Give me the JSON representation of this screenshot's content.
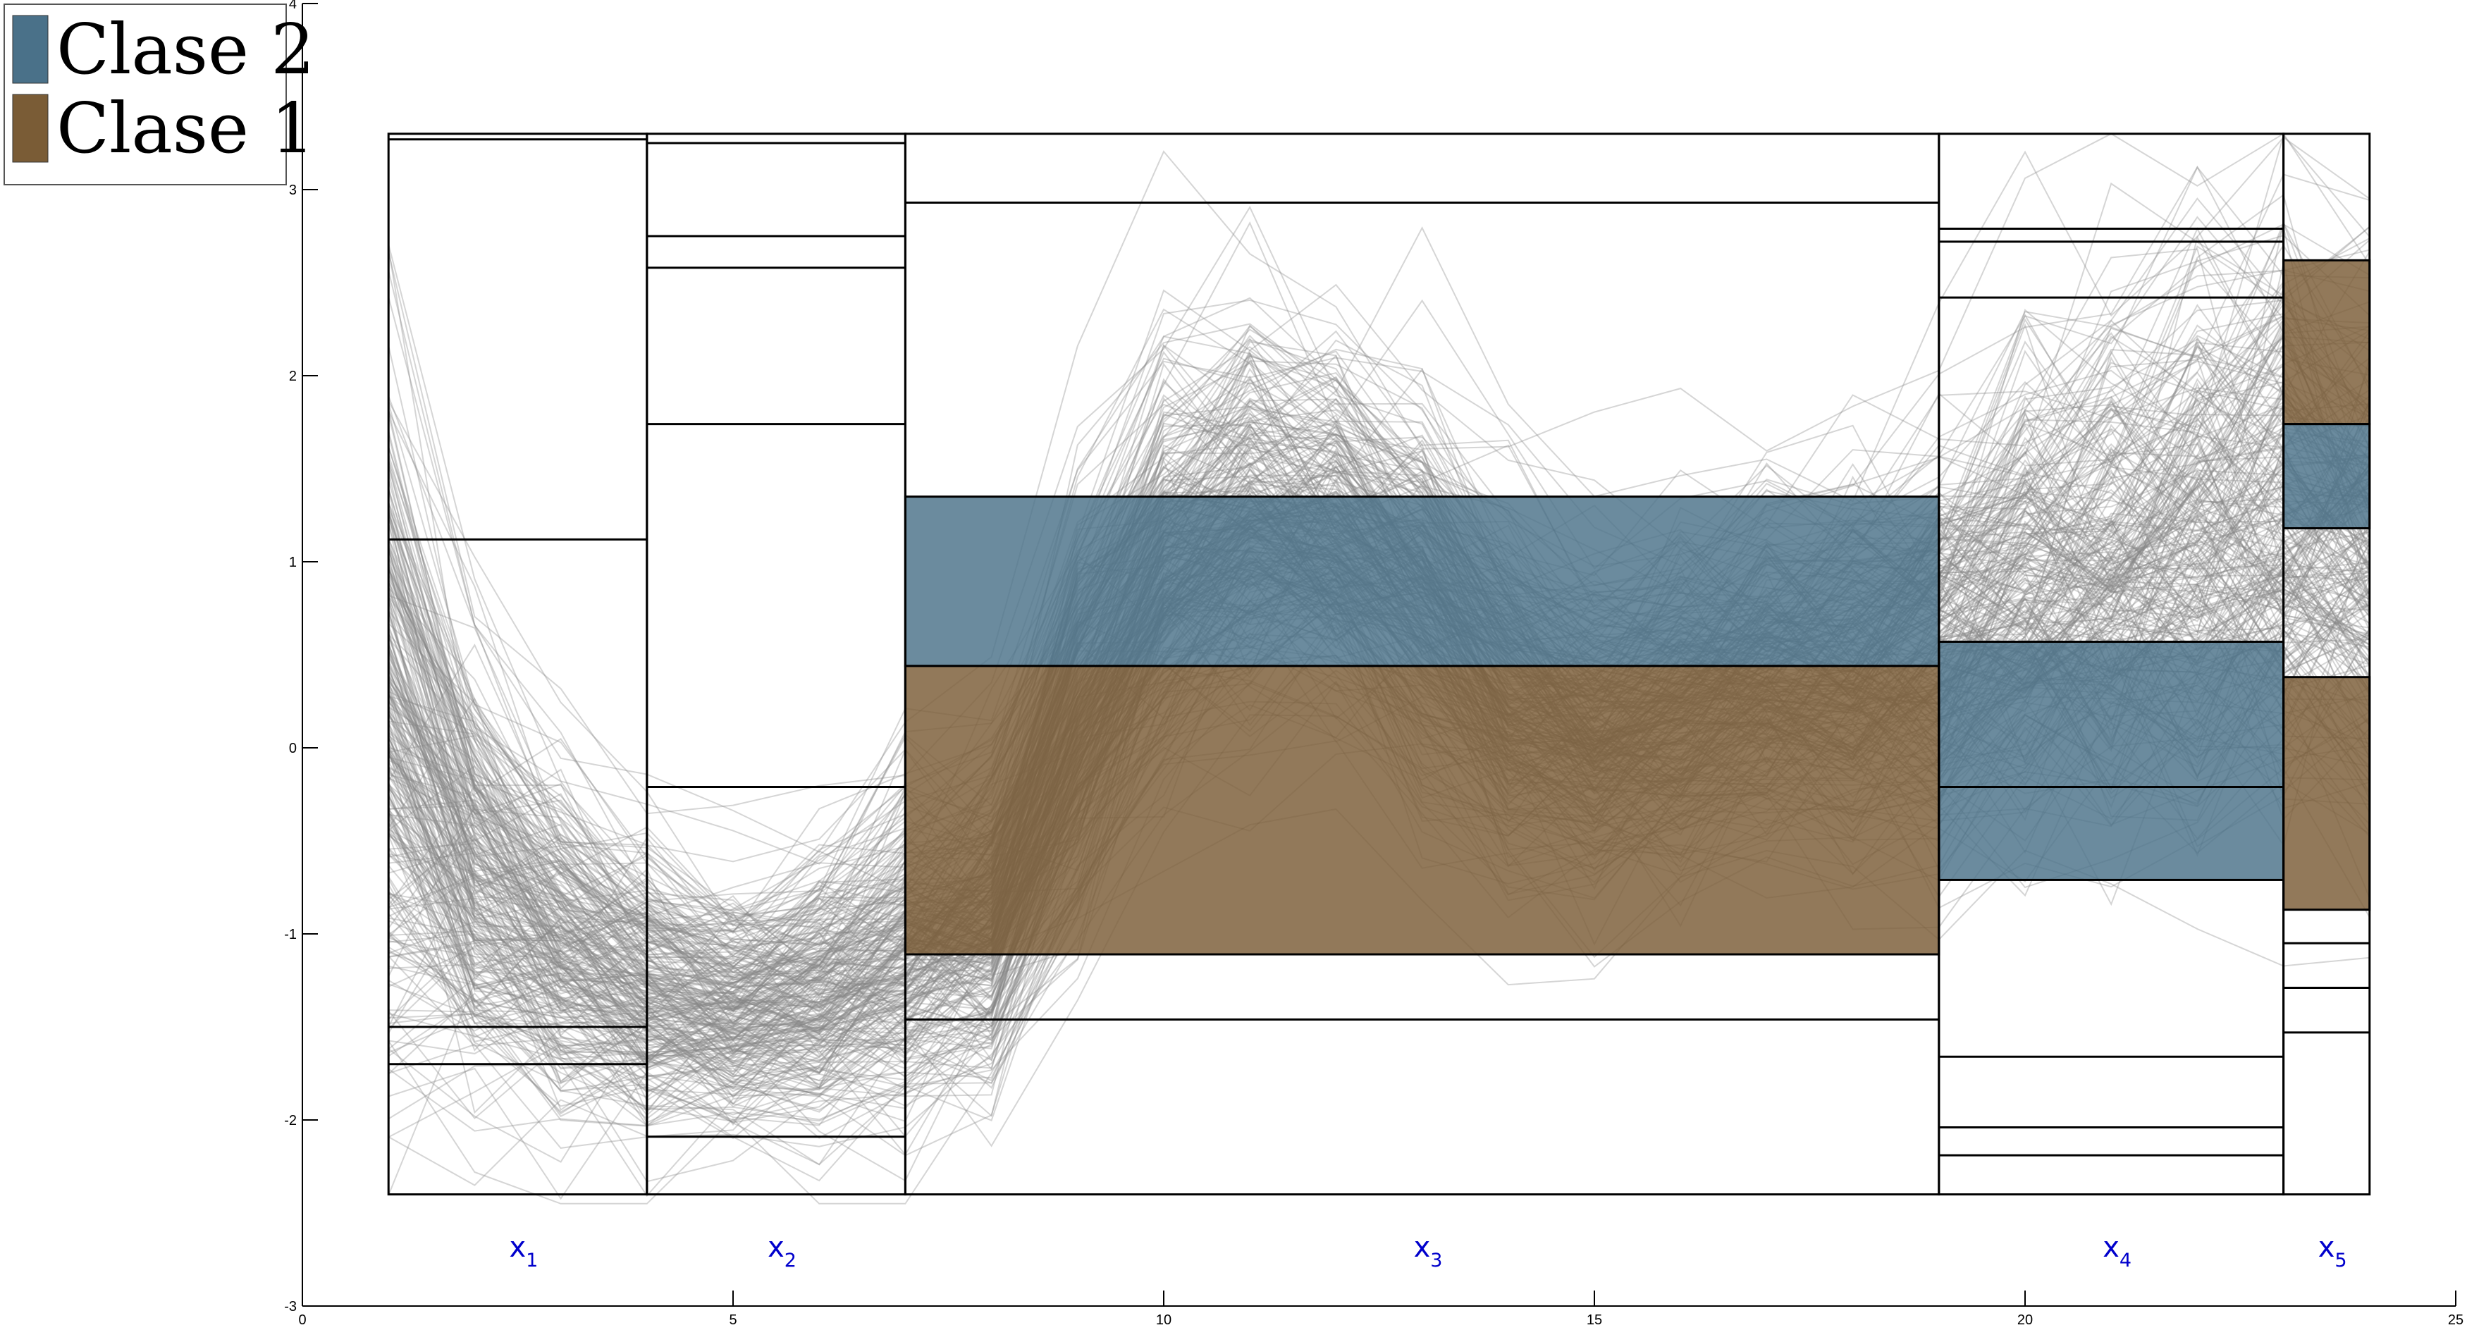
{
  "chart_data": {
    "type": "line",
    "title": "",
    "xlabel": "",
    "ylabel": "",
    "xlim": [
      0,
      25
    ],
    "ylim": [
      -3,
      4
    ],
    "x_ticks": [
      {
        "value": 0,
        "label": "0"
      },
      {
        "value": 5,
        "label": "5"
      },
      {
        "value": 10,
        "label": "10"
      },
      {
        "value": 15,
        "label": "15"
      },
      {
        "value": 20,
        "label": "20"
      },
      {
        "value": 25,
        "label": "25"
      }
    ],
    "y_ticks": [
      {
        "value": -3,
        "label": "-3"
      },
      {
        "value": -2,
        "label": "-2"
      },
      {
        "value": -1,
        "label": "-1"
      },
      {
        "value": 0,
        "label": "0"
      },
      {
        "value": 1,
        "label": "1"
      },
      {
        "value": 2,
        "label": "2"
      },
      {
        "value": 3,
        "label": "3"
      },
      {
        "value": 4,
        "label": "4"
      }
    ],
    "grid": false,
    "legend_position": "top-left",
    "legend": [
      {
        "name": "Clase 2",
        "color": "#4a7189"
      },
      {
        "name": "Clase 1",
        "color": "#7a5c36"
      }
    ],
    "segments": [
      {
        "base": "x",
        "sub": "1",
        "x_start": 1,
        "x_end": 4,
        "y_bottom": -2.4,
        "y_top": 3.3,
        "cuts": [
          3.27,
          1.12,
          -1.5,
          -1.7
        ],
        "bands": []
      },
      {
        "base": "x",
        "sub": "2",
        "x_start": 4,
        "x_end": 7,
        "y_bottom": -2.4,
        "y_top": 3.3,
        "cuts": [
          3.25,
          2.75,
          2.58,
          1.74,
          -0.21,
          -2.09
        ],
        "bands": []
      },
      {
        "base": "x",
        "sub": "3",
        "x_start": 7,
        "x_end": 19,
        "y_bottom": -2.4,
        "y_top": 3.3,
        "cuts": [
          2.93,
          -1.46
        ],
        "bands": [
          {
            "class": "Clase 2",
            "y_low": 0.44,
            "y_high": 1.35
          },
          {
            "class": "Clase 1",
            "y_low": -1.11,
            "y_high": 0.44
          }
        ]
      },
      {
        "base": "x",
        "sub": "4",
        "x_start": 19,
        "x_end": 23,
        "y_bottom": -2.4,
        "y_top": 3.3,
        "cuts": [
          2.79,
          2.72,
          2.42,
          -0.21,
          -1.66,
          -2.04,
          -2.19
        ],
        "bands": [
          {
            "class": "Clase 2",
            "y_low": -0.71,
            "y_high": 0.57
          }
        ]
      },
      {
        "base": "x",
        "sub": "5",
        "x_start": 23,
        "x_end": 24,
        "y_bottom": -2.4,
        "y_top": 3.3,
        "cuts": [
          1.18,
          -1.05,
          -1.29,
          -1.53
        ],
        "bands": [
          {
            "class": "Clase 1",
            "y_low": 1.74,
            "y_high": 2.62
          },
          {
            "class": "Clase 2",
            "y_low": 1.18,
            "y_high": 1.74
          },
          {
            "class": "Clase 1",
            "y_low": -0.87,
            "y_high": 0.38
          }
        ]
      }
    ],
    "trace_profile": {
      "x": [
        1,
        2,
        3,
        4,
        5,
        6,
        7,
        8,
        9,
        10,
        11,
        12,
        13,
        14,
        15,
        16,
        17,
        18,
        19,
        20,
        21,
        22,
        23,
        24
      ],
      "mean": [
        0.0,
        -0.75,
        -1.1,
        -1.35,
        -1.45,
        -1.35,
        -1.15,
        -1.0,
        0.1,
        0.9,
        1.15,
        1.1,
        0.75,
        0.25,
        0.05,
        0.2,
        0.35,
        0.4,
        0.5,
        0.75,
        0.9,
        1.05,
        1.15,
        1.0
      ],
      "spread": [
        1.1,
        0.7,
        0.55,
        0.45,
        0.4,
        0.45,
        0.55,
        0.55,
        0.7,
        0.7,
        0.65,
        0.6,
        0.65,
        0.6,
        0.55,
        0.55,
        0.55,
        0.6,
        0.7,
        0.8,
        0.85,
        0.9,
        0.9,
        0.85
      ],
      "count": 300
    }
  }
}
